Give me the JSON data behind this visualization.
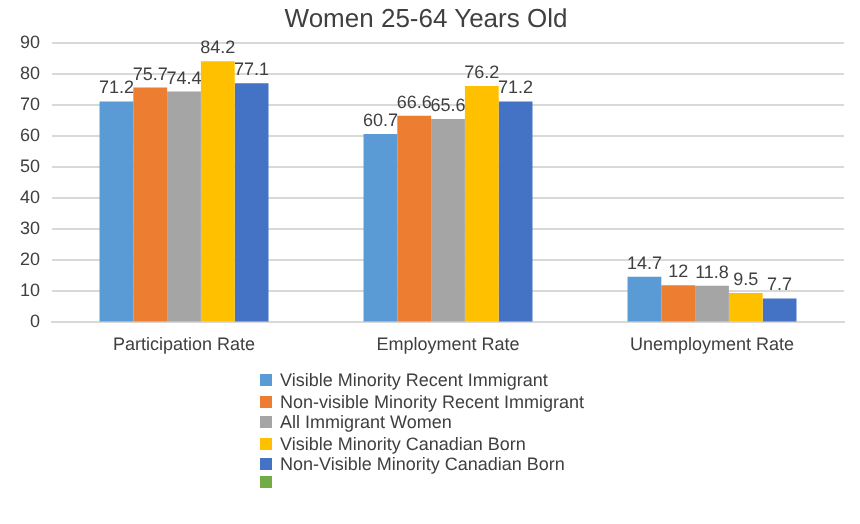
{
  "chart_data": {
    "type": "bar",
    "title": "Women 25-64 Years Old",
    "categories": [
      "Participation Rate",
      "Employment Rate",
      "Unemployment Rate"
    ],
    "series": [
      {
        "name": "Visible Minority Recent Immigrant",
        "color": "#5b9bd5",
        "values": [
          71.2,
          60.7,
          14.7
        ]
      },
      {
        "name": "Non-visible Minority Recent Immigrant",
        "color": "#ed7d31",
        "values": [
          75.7,
          66.6,
          12
        ]
      },
      {
        "name": "All Immigrant Women",
        "color": "#a5a5a5",
        "values": [
          74.4,
          65.6,
          11.8
        ]
      },
      {
        "name": "Visible Minority Canadian Born",
        "color": "#ffc000",
        "values": [
          84.2,
          76.2,
          9.5
        ]
      },
      {
        "name": "Non-Visible Minority Canadian Born",
        "color": "#4472c4",
        "values": [
          77.1,
          71.2,
          7.7
        ]
      },
      {
        "color": "#70ad47",
        "values": [
          null,
          null,
          null
        ]
      }
    ],
    "ylim": [
      0,
      90
    ],
    "yticks": [
      0,
      10,
      20,
      30,
      40,
      50,
      60,
      70,
      80,
      90
    ],
    "grid": "y",
    "legend": "bottom",
    "data_labels": true
  }
}
